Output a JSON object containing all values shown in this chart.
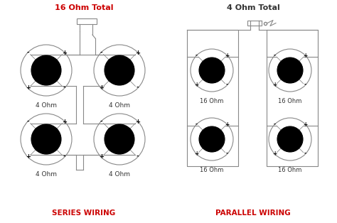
{
  "bg": "#ffffff",
  "lc": "#888888",
  "red": "#cc0000",
  "dark": "#333333",
  "title_l": "16 Ohm Total",
  "title_r": "4 Ohm Total",
  "label_l": "SERIES WIRING",
  "label_r": "PARALLEL WIRING",
  "ohm_s": "4 Ohm",
  "ohm_p": "16 Ohm",
  "fig_w": 4.74,
  "fig_h": 3.14,
  "dpi": 100
}
